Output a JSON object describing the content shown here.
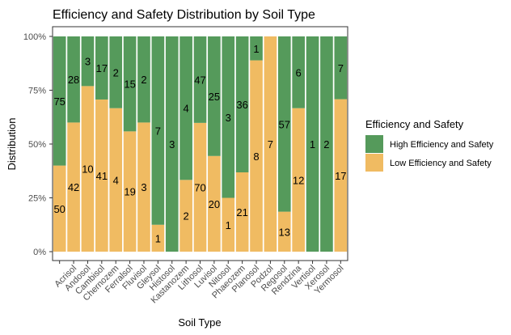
{
  "chart_data": {
    "type": "bar",
    "stacked": "percent",
    "title": "Efficiency and Safety Distribution by Soil Type",
    "x_label": "Soil Type",
    "y_label": "Distribution",
    "categories": [
      null,
      "Acrisol",
      "Andosol",
      "Cambisol",
      "Chernozem",
      "Ferralsol",
      "Fluvisol",
      "Gleysol",
      "Histosol",
      "Kastanozem",
      "Lithosol",
      "Luvisol",
      "Nitosol",
      "Phaeozem",
      "Planosol",
      "Podzol",
      "Regosol",
      "Rendzina",
      "Vertisol",
      "Xerosol",
      "Yermosol"
    ],
    "series": [
      {
        "name": "High Efficiency and Safety",
        "color": "#559a5b",
        "values": [
          75,
          28,
          3,
          17,
          2,
          15,
          2,
          7,
          3,
          4,
          47,
          25,
          3,
          36,
          1,
          0,
          57,
          6,
          1,
          2,
          7
        ]
      },
      {
        "name": "Low Efficiency and Safety",
        "color": "#f0bb62",
        "values": [
          50,
          42,
          10,
          41,
          4,
          19,
          3,
          1,
          0,
          2,
          70,
          20,
          1,
          21,
          8,
          7,
          13,
          12,
          0,
          0,
          17
        ]
      }
    ],
    "ylim": [
      0,
      100
    ],
    "yticks": [
      {
        "value": 0,
        "label": "0%"
      },
      {
        "value": 25,
        "label": "25%"
      },
      {
        "value": 50,
        "label": "50%"
      },
      {
        "value": 75,
        "label": "75%"
      },
      {
        "value": 100,
        "label": "100%"
      }
    ],
    "legend_title": "Efficiency and Safety",
    "legend": "right"
  }
}
